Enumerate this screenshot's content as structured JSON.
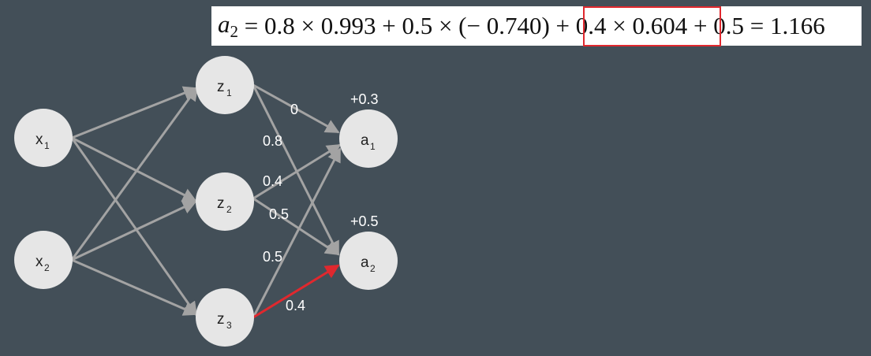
{
  "formula": {
    "lhs_symbol": "a",
    "lhs_subscript": "2",
    "part_a": " = 0.8 × 0.993 + 0.5 × (− 0.740) + ",
    "part_highlight": "0.4 × 0.604",
    "part_b": " + 0.5 = 1.166"
  },
  "nodes": {
    "x1": {
      "base": "x",
      "sub": "1"
    },
    "x2": {
      "base": "x",
      "sub": "2"
    },
    "z1": {
      "base": "z",
      "sub": "1"
    },
    "z2": {
      "base": "z",
      "sub": "2"
    },
    "z3": {
      "base": "z",
      "sub": "3"
    },
    "a1": {
      "base": "a",
      "sub": "1"
    },
    "a2": {
      "base": "a",
      "sub": "2"
    }
  },
  "biases": {
    "a1": "+0.3",
    "a2": "+0.5"
  },
  "weights": {
    "z1_a1": "0",
    "z1_a2": "0.8",
    "z2_a1": "0.4",
    "z2_a2": "0.5",
    "z3_a1": "0.5",
    "z3_a2": "0.4"
  },
  "colors": {
    "background": "#434f58",
    "node_fill": "#e6e6e6",
    "edge": "#a3a3a3",
    "highlight": "#e0282e"
  }
}
